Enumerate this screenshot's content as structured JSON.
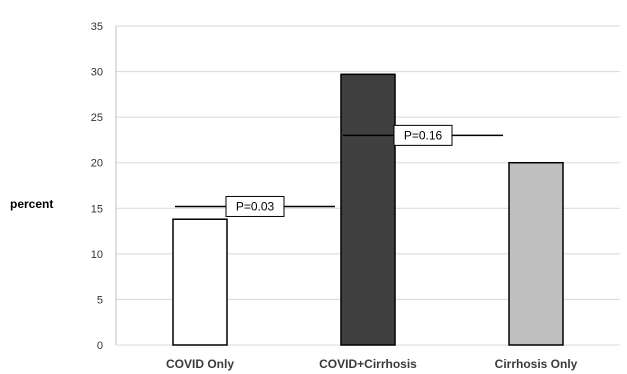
{
  "chart_data": {
    "type": "bar",
    "categories": [
      "COVID Only",
      "COVID+Cirrhosis",
      "Cirrhosis Only"
    ],
    "values": [
      13.8,
      29.7,
      20.0
    ],
    "bar_colors": [
      "#ffffff",
      "#404040",
      "#bfbfbf"
    ],
    "ylabel": "percent",
    "ylim": [
      0,
      35
    ],
    "yticks": [
      0,
      5,
      10,
      15,
      20,
      25,
      30,
      35
    ],
    "grid": true,
    "annotations": [
      {
        "text": "P=0.03",
        "from_category": 0,
        "to_category": 1,
        "y": 15.2
      },
      {
        "text": "P=0.16",
        "from_category": 1,
        "to_category": 2,
        "y": 23.0
      }
    ]
  }
}
